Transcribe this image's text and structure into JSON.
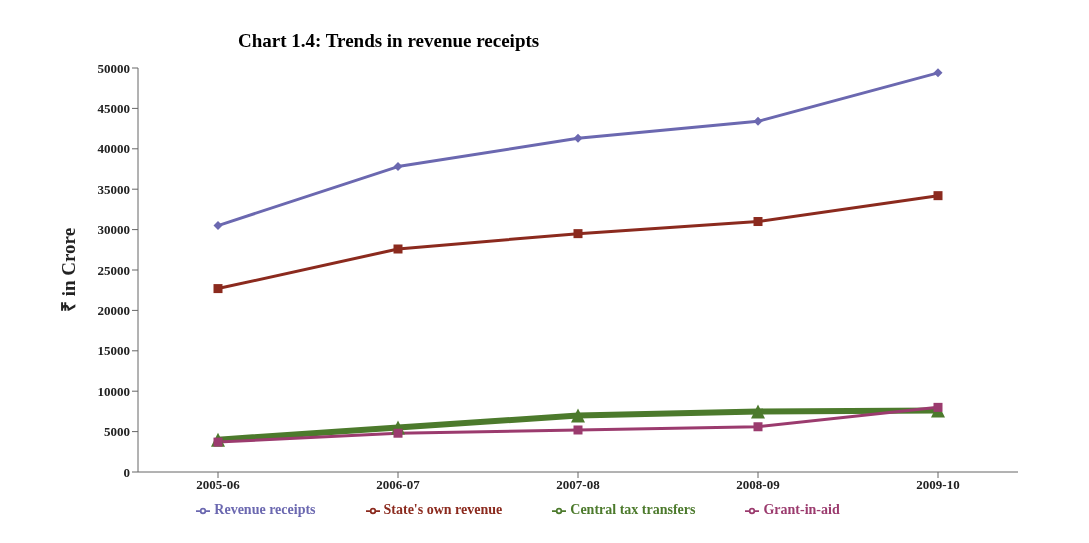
{
  "chart_data": {
    "type": "line",
    "title": "Chart 1.4: Trends in revenue receipts",
    "ylabel": "₹ in Crore",
    "categories": [
      "2005-06",
      "2006-07",
      "2007-08",
      "2008-09",
      "2009-10"
    ],
    "series": [
      {
        "name": "Revenue receipts",
        "color": "#6b68b0",
        "marker": "diamond",
        "values": [
          30500,
          37800,
          41300,
          43400,
          49400
        ]
      },
      {
        "name": "State's own revenue",
        "color": "#8b2a1e",
        "marker": "square",
        "values": [
          22700,
          27600,
          29500,
          31000,
          34200
        ]
      },
      {
        "name": "Central tax transfers",
        "color": "#4c7a2c",
        "marker": "triangle",
        "values": [
          4000,
          5500,
          7000,
          7500,
          7600
        ]
      },
      {
        "name": "Grant-in-aid",
        "color": "#9b3b6e",
        "marker": "square",
        "values": [
          3700,
          4800,
          5200,
          5600,
          8000
        ]
      }
    ],
    "ylim": [
      0,
      50000
    ],
    "yticks": [
      0,
      5000,
      10000,
      15000,
      20000,
      25000,
      30000,
      35000,
      40000,
      45000,
      50000
    ],
    "legend": "bottom"
  }
}
